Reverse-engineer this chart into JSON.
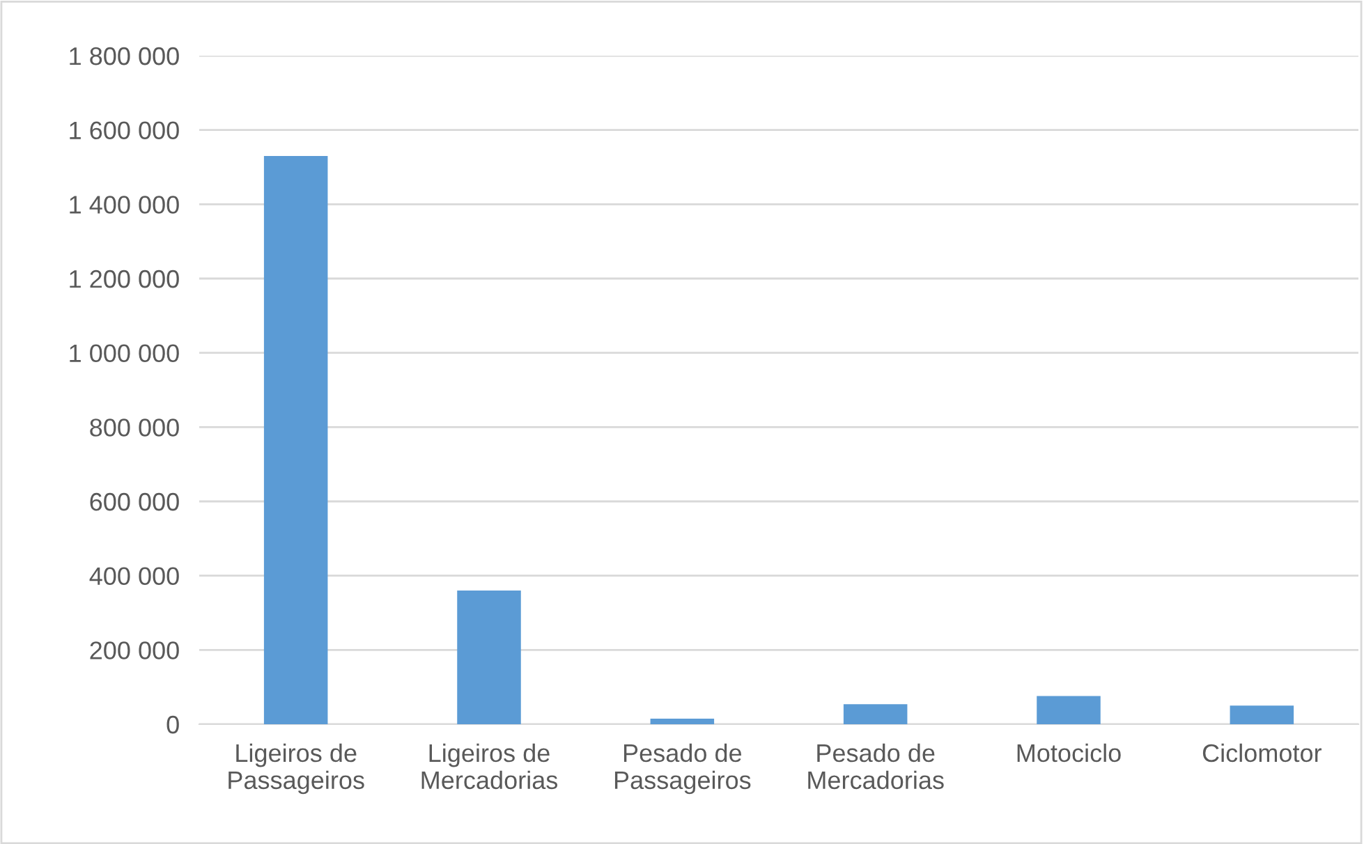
{
  "chart_data": {
    "type": "bar",
    "categories": [
      "Ligeiros de\nPassageiros",
      "Ligeiros de\nMercadorias",
      "Pesado de\nPassageiros",
      "Pesado de\nMercadorias",
      "Motociclo",
      "Ciclomotor"
    ],
    "values": [
      1530000,
      360000,
      15000,
      54000,
      76000,
      50000
    ],
    "color": "#5b9bd5",
    "ylim": [
      0,
      1800000
    ],
    "yticks": [
      {
        "value": 0,
        "label": "0"
      },
      {
        "value": 200000,
        "label": "200 000"
      },
      {
        "value": 400000,
        "label": "400 000"
      },
      {
        "value": 600000,
        "label": "600 000"
      },
      {
        "value": 800000,
        "label": "800 000"
      },
      {
        "value": 1000000,
        "label": "1 000 000"
      },
      {
        "value": 1200000,
        "label": "1 200 000"
      },
      {
        "value": 1400000,
        "label": "1 400 000"
      },
      {
        "value": 1600000,
        "label": "1 600 000"
      },
      {
        "value": 1800000,
        "label": "1 800 000"
      }
    ],
    "grid": "y"
  }
}
